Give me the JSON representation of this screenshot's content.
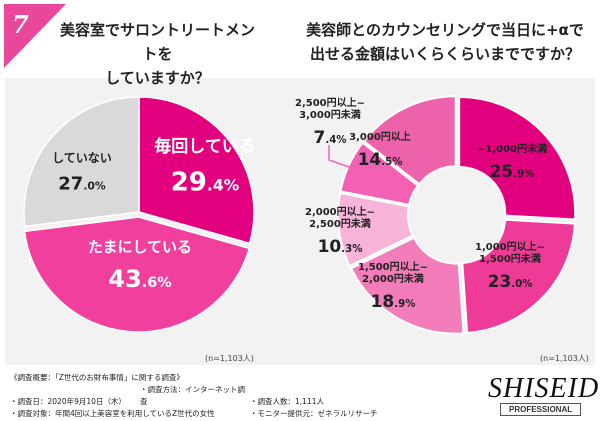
{
  "badge_number": "7",
  "chart_data": [
    {
      "type": "pie",
      "title": "美容室でサロントリートメントをしていますか？",
      "title_lines": [
        "美容室でサロントリートメントを",
        "していますか？"
      ],
      "categories": [
        "毎回している",
        "たまにしている",
        "していない"
      ],
      "values": [
        29.4,
        43.6,
        27.0
      ],
      "colors": [
        "#e2007f",
        "#f13f9e",
        "#d9d9d9"
      ],
      "note": "(n=1,103人)"
    },
    {
      "type": "pie",
      "title": "美容師とのカウンセリングで当日に+αで出せる金額はいくらくらいまでですか？",
      "title_lines": [
        "美容師とのカウンセリングで当日に+αで",
        "出せる金額はいくらくらいまでですか？"
      ],
      "categories": [
        "~1,000円未満",
        "1,000円以上~1,500円未満",
        "1,500円以上~2,000円未満",
        "2,000円以上~2,500円未満",
        "2,500円以上~3,000円未満",
        "3,000円以上"
      ],
      "values": [
        25.9,
        23.0,
        18.9,
        10.3,
        7.4,
        14.5
      ],
      "colors": [
        "#e2007f",
        "#ef3b98",
        "#f37cba",
        "#f8b4d8",
        "#f261b3",
        "#ec63ab"
      ],
      "note": "(n=1,103人)"
    }
  ],
  "footer": {
    "heading": "《調査概要：「Z世代のお財布事情」に関する調査》",
    "date": "・調査日：2020年9月10日（木）",
    "method": "・調査方法：インターネット調査",
    "count": "・調査人数：1,111人",
    "target": "・調査対象：年間4回以上美容室を利用しているZ世代の女性",
    "provider": "・モニター提供元：ゼネラルリサーチ"
  },
  "logo": {
    "brand": "SHISEIDO",
    "sub": "PROFESSIONAL"
  }
}
